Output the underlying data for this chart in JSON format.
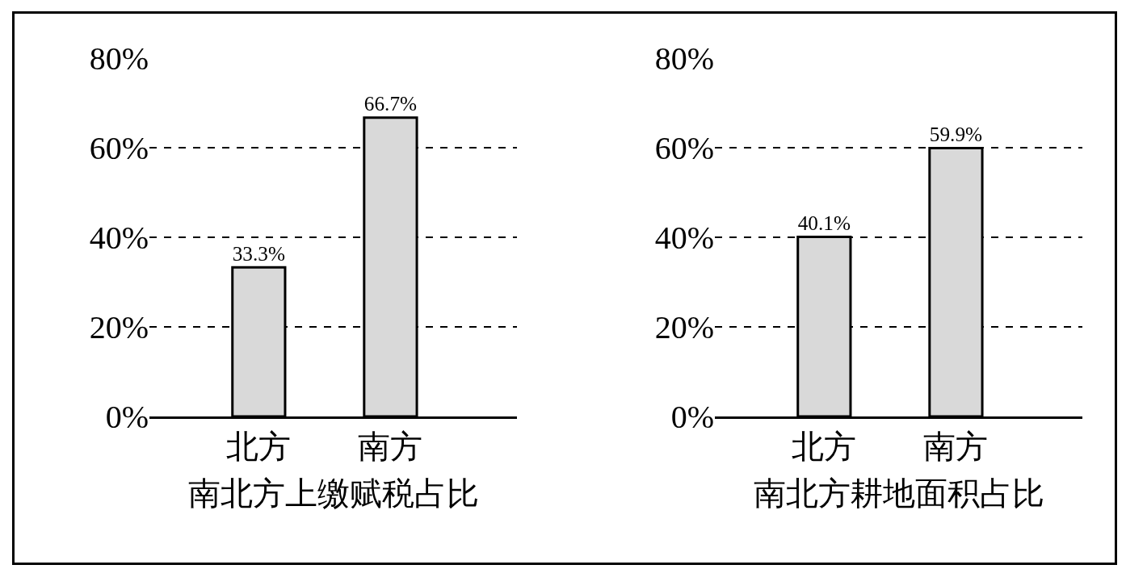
{
  "chart_data": [
    {
      "type": "bar",
      "xlabel": "南北方上缴赋税占比",
      "categories": [
        "北方",
        "南方"
      ],
      "values": [
        33.3,
        66.7
      ],
      "value_labels": [
        "33.3%",
        "66.7%"
      ],
      "color": "#d9d9d9",
      "ylim": [
        0,
        80
      ],
      "yticks": [
        {
          "value": 0,
          "label": "0%"
        },
        {
          "value": 20,
          "label": "20%"
        },
        {
          "value": 40,
          "label": "40%"
        },
        {
          "value": 60,
          "label": "60%"
        },
        {
          "value": 80,
          "label": "80%"
        }
      ],
      "grid": "y"
    },
    {
      "type": "bar",
      "xlabel": "南北方耕地面积占比",
      "categories": [
        "北方",
        "南方"
      ],
      "values": [
        40.1,
        59.9
      ],
      "value_labels": [
        "40.1%",
        "59.9%"
      ],
      "color": "#d9d9d9",
      "ylim": [
        0,
        80
      ],
      "yticks": [
        {
          "value": 0,
          "label": "0%"
        },
        {
          "value": 20,
          "label": "20%"
        },
        {
          "value": 40,
          "label": "40%"
        },
        {
          "value": 60,
          "label": "60%"
        },
        {
          "value": 80,
          "label": "80%"
        }
      ],
      "grid": "y"
    }
  ]
}
